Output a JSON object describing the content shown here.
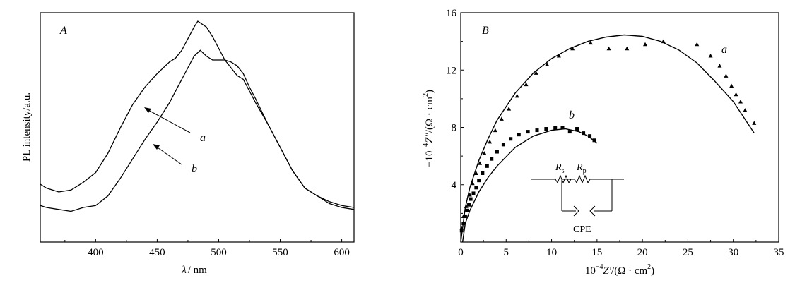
{
  "chart_data": [
    {
      "panel": "A",
      "type": "line",
      "xlabel_symbol": "λ",
      "xlabel_unit": "/ nm",
      "ylabel": "PL intensity/a.u.",
      "xlim": [
        355,
        610
      ],
      "ylim": [
        0,
        1
      ],
      "x_ticks": [
        400,
        450,
        500,
        550,
        600
      ],
      "y_ticks": [],
      "grid": false,
      "series": [
        {
          "name": "a",
          "x": [
            355,
            360,
            370,
            380,
            390,
            400,
            410,
            420,
            430,
            440,
            450,
            460,
            465,
            470,
            475,
            480,
            483,
            490,
            495,
            500,
            505,
            510,
            515,
            520,
            525,
            530,
            540,
            550,
            560,
            570,
            580,
            590,
            600,
            610
          ],
          "y": [
            0.16,
            0.14,
            0.12,
            0.13,
            0.17,
            0.22,
            0.32,
            0.45,
            0.57,
            0.66,
            0.73,
            0.79,
            0.81,
            0.85,
            0.91,
            0.97,
            1.0,
            0.97,
            0.92,
            0.86,
            0.8,
            0.76,
            0.72,
            0.7,
            0.64,
            0.58,
            0.47,
            0.35,
            0.23,
            0.14,
            0.1,
            0.07,
            0.05,
            0.04
          ]
        },
        {
          "name": "b",
          "x": [
            355,
            360,
            370,
            380,
            390,
            400,
            410,
            420,
            430,
            440,
            450,
            460,
            470,
            480,
            485,
            490,
            495,
            500,
            505,
            510,
            515,
            520,
            525,
            530,
            540,
            550,
            560,
            570,
            580,
            590,
            600,
            610
          ],
          "y": [
            0.05,
            0.04,
            0.03,
            0.02,
            0.04,
            0.05,
            0.1,
            0.19,
            0.29,
            0.39,
            0.48,
            0.58,
            0.7,
            0.82,
            0.85,
            0.82,
            0.8,
            0.8,
            0.8,
            0.79,
            0.77,
            0.73,
            0.66,
            0.6,
            0.47,
            0.35,
            0.23,
            0.14,
            0.1,
            0.06,
            0.04,
            0.03
          ]
        }
      ],
      "annotations": {
        "panel_label": "A",
        "curve_labels": [
          "a",
          "b"
        ]
      }
    },
    {
      "panel": "B",
      "type": "scatter",
      "xlabel_prefix": "10",
      "xlabel_exp": "−4",
      "xlabel_var": "Z'",
      "xlabel_unit": "/(Ω · cm",
      "xlabel_unit_close": ")",
      "ylabel_prefix": "−10",
      "ylabel_exp": "−4",
      "ylabel_var": "Z\"",
      "ylabel_unit": "/(Ω · cm",
      "ylabel_unit_close": ")",
      "unit_exp": "2",
      "xlim": [
        0,
        35
      ],
      "ylim": [
        0,
        16
      ],
      "x_ticks": [
        0,
        5,
        10,
        15,
        20,
        25,
        30,
        35
      ],
      "y_ticks": [
        4,
        8,
        12,
        16
      ],
      "grid": false,
      "series": [
        {
          "name": "a",
          "marker": "triangle",
          "points": [
            [
              0.1,
              1.0
            ],
            [
              0.3,
              1.8
            ],
            [
              0.6,
              2.5
            ],
            [
              1.0,
              3.3
            ],
            [
              1.3,
              4.1
            ],
            [
              1.7,
              4.8
            ],
            [
              2.1,
              5.5
            ],
            [
              2.6,
              6.2
            ],
            [
              3.2,
              7.0
            ],
            [
              3.8,
              7.8
            ],
            [
              4.5,
              8.6
            ],
            [
              5.3,
              9.3
            ],
            [
              6.2,
              10.2
            ],
            [
              7.2,
              11.0
            ],
            [
              8.3,
              11.8
            ],
            [
              9.5,
              12.4
            ],
            [
              10.8,
              13.0
            ],
            [
              12.3,
              13.5
            ],
            [
              14.3,
              13.9
            ],
            [
              16.3,
              13.5
            ],
            [
              18.3,
              13.5
            ],
            [
              20.3,
              13.8
            ],
            [
              22.3,
              14.0
            ],
            [
              26.0,
              13.8
            ],
            [
              27.5,
              13.0
            ],
            [
              28.5,
              12.3
            ],
            [
              29.2,
              11.6
            ],
            [
              29.8,
              10.9
            ],
            [
              30.3,
              10.3
            ],
            [
              30.8,
              9.8
            ],
            [
              31.3,
              9.2
            ],
            [
              32.3,
              8.3
            ]
          ]
        },
        {
          "name": "b",
          "marker": "square",
          "points": [
            [
              0.1,
              0.8
            ],
            [
              0.3,
              1.3
            ],
            [
              0.5,
              1.8
            ],
            [
              0.7,
              2.2
            ],
            [
              0.9,
              2.6
            ],
            [
              1.1,
              3.0
            ],
            [
              1.4,
              3.4
            ],
            [
              1.7,
              3.8
            ],
            [
              2.0,
              4.3
            ],
            [
              2.4,
              4.8
            ],
            [
              2.9,
              5.3
            ],
            [
              3.4,
              5.8
            ],
            [
              4.0,
              6.3
            ],
            [
              4.7,
              6.8
            ],
            [
              5.5,
              7.2
            ],
            [
              6.4,
              7.5
            ],
            [
              7.4,
              7.7
            ],
            [
              8.4,
              7.8
            ],
            [
              9.4,
              7.9
            ],
            [
              10.4,
              7.95
            ],
            [
              11.2,
              8.0
            ],
            [
              12.0,
              7.7
            ],
            [
              12.8,
              7.9
            ],
            [
              13.5,
              7.6
            ],
            [
              14.2,
              7.4
            ],
            [
              14.7,
              7.1
            ]
          ]
        }
      ],
      "fits": [
        {
          "name": "a",
          "points": [
            [
              0,
              0
            ],
            [
              0.5,
              2.4
            ],
            [
              1.0,
              3.8
            ],
            [
              2.0,
              5.7
            ],
            [
              3.0,
              7.2
            ],
            [
              4.0,
              8.5
            ],
            [
              6.0,
              10.4
            ],
            [
              8.0,
              11.8
            ],
            [
              10.0,
              12.8
            ],
            [
              12.0,
              13.5
            ],
            [
              14.0,
              14.0
            ],
            [
              16.0,
              14.3
            ],
            [
              18.0,
              14.45
            ],
            [
              20.0,
              14.35
            ],
            [
              22.0,
              14.0
            ],
            [
              24.0,
              13.4
            ],
            [
              26.0,
              12.5
            ],
            [
              28.0,
              11.2
            ],
            [
              30.0,
              9.8
            ],
            [
              32.3,
              7.6
            ]
          ]
        },
        {
          "name": "b",
          "points": [
            [
              0.2,
              0
            ],
            [
              0.5,
              1.3
            ],
            [
              1.0,
              2.2
            ],
            [
              2.0,
              3.5
            ],
            [
              3.0,
              4.5
            ],
            [
              4.0,
              5.3
            ],
            [
              6.0,
              6.6
            ],
            [
              8.0,
              7.4
            ],
            [
              10.0,
              7.8
            ],
            [
              11.5,
              7.9
            ],
            [
              13.0,
              7.7
            ],
            [
              14.0,
              7.4
            ],
            [
              15.0,
              6.9
            ]
          ]
        }
      ],
      "inset_circuit": {
        "labels": [
          "R",
          "R",
          "CPE"
        ],
        "subscripts": [
          "s",
          "p"
        ]
      },
      "annotations": {
        "panel_label": "B",
        "curve_labels": [
          "a",
          "b"
        ]
      }
    }
  ]
}
